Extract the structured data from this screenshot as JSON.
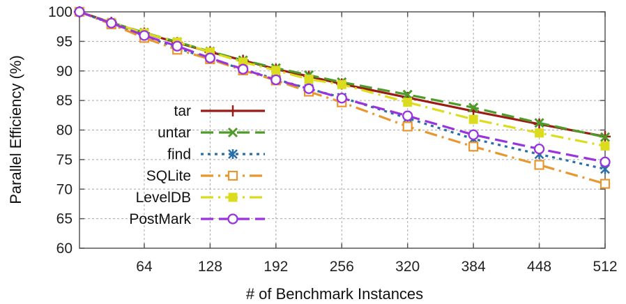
{
  "chart_data": {
    "type": "line",
    "title": "",
    "xlabel": "# of Benchmark Instances",
    "ylabel": "Parallel Efficiency (%)",
    "xlim": [
      1,
      512
    ],
    "ylim": [
      60,
      100
    ],
    "xticks": [
      64,
      128,
      192,
      256,
      320,
      384,
      448,
      512
    ],
    "yticks": [
      60,
      65,
      70,
      75,
      80,
      85,
      90,
      95,
      100
    ],
    "grid": true,
    "legend_position": "lower-left",
    "series": [
      {
        "name": "tar",
        "color": "#9b1b14",
        "marker": "plus",
        "dash": "solid",
        "x": [
          1,
          32,
          64,
          96,
          128,
          160,
          192,
          224,
          256,
          320,
          384,
          448,
          512
        ],
        "y": [
          100,
          98.2,
          96.4,
          94.8,
          93.2,
          91.8,
          90.3,
          89.1,
          87.8,
          85.5,
          83.2,
          81.0,
          78.9
        ]
      },
      {
        "name": "untar",
        "color": "#4e9a2a",
        "marker": "x",
        "dash": "long-dash",
        "x": [
          1,
          32,
          64,
          96,
          128,
          160,
          192,
          224,
          256,
          320,
          384,
          448,
          512
        ],
        "y": [
          100,
          98.2,
          96.5,
          94.9,
          93.3,
          91.8,
          90.5,
          89.3,
          88.1,
          86.0,
          83.8,
          81.2,
          78.8
        ]
      },
      {
        "name": "find",
        "color": "#2b6ea6",
        "marker": "asterisk",
        "dash": "dotted",
        "x": [
          1,
          32,
          64,
          96,
          128,
          160,
          192,
          224,
          256,
          320,
          384,
          448,
          512
        ],
        "y": [
          100,
          98.0,
          95.9,
          93.9,
          92.0,
          90.3,
          88.6,
          87.0,
          85.5,
          82.0,
          78.5,
          75.9,
          73.4
        ]
      },
      {
        "name": "SQLite",
        "color": "#e8962e",
        "marker": "square-open",
        "dash": "dash-dot",
        "x": [
          1,
          32,
          64,
          96,
          128,
          160,
          192,
          224,
          256,
          320,
          384,
          448,
          512
        ],
        "y": [
          100,
          97.9,
          95.6,
          93.6,
          92.0,
          90.1,
          88.4,
          86.5,
          84.7,
          80.6,
          77.2,
          74.1,
          70.9
        ]
      },
      {
        "name": "LevelDB",
        "color": "#dcdc1e",
        "marker": "square-filled",
        "dash": "dash-dot",
        "x": [
          1,
          32,
          64,
          96,
          128,
          160,
          192,
          224,
          256,
          320,
          384,
          448,
          512
        ],
        "y": [
          100,
          98.2,
          96.4,
          94.9,
          93.2,
          91.5,
          90.1,
          88.6,
          87.7,
          84.7,
          81.8,
          79.5,
          77.3
        ]
      },
      {
        "name": "PostMark",
        "color": "#9933dd",
        "marker": "circle-open",
        "dash": "long-dash",
        "x": [
          1,
          32,
          64,
          96,
          128,
          160,
          192,
          224,
          256,
          320,
          384,
          448,
          512
        ],
        "y": [
          100,
          98.1,
          96.0,
          94.2,
          92.2,
          90.3,
          88.5,
          87.0,
          85.4,
          82.4,
          79.2,
          76.8,
          74.6
        ]
      }
    ]
  }
}
